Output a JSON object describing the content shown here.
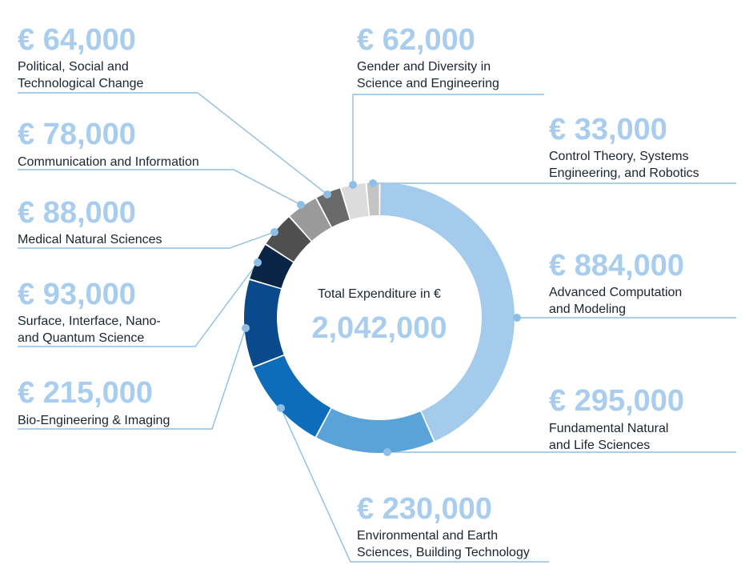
{
  "chart_data": {
    "type": "pie",
    "center_caption": "Total Expenditure in €",
    "total_label": "2,042,000",
    "total": 2042000,
    "slices": [
      {
        "amount_label": "€ 884,000",
        "label_lines": [
          "Advanced Computation",
          "and Modeling"
        ],
        "value": 884000,
        "color": "#a4cbeb"
      },
      {
        "amount_label": "€ 295,000",
        "label_lines": [
          "Fundamental Natural",
          "and Life Sciences"
        ],
        "value": 295000,
        "color": "#5aa3d8"
      },
      {
        "amount_label": "€ 230,000",
        "label_lines": [
          "Environmental and Earth",
          "Sciences, Building Technology"
        ],
        "value": 230000,
        "color": "#0e6dbb"
      },
      {
        "amount_label": "€ 215,000",
        "label_lines": [
          "Bio-Engineering & Imaging"
        ],
        "value": 215000,
        "color": "#0a4a8c"
      },
      {
        "amount_label": "€ 93,000",
        "label_lines": [
          "Surface, Interface, Nano-",
          "and Quantum Science"
        ],
        "value": 93000,
        "color": "#0a2446"
      },
      {
        "amount_label": "€ 88,000",
        "label_lines": [
          "Medical Natural Sciences"
        ],
        "value": 88000,
        "color": "#4f4f4f"
      },
      {
        "amount_label": "€ 78,000",
        "label_lines": [
          "Communication and Information"
        ],
        "value": 78000,
        "color": "#9a9a9a"
      },
      {
        "amount_label": "€ 64,000",
        "label_lines": [
          "Political, Social and",
          "Technological Change"
        ],
        "value": 64000,
        "color": "#6a6a6a"
      },
      {
        "amount_label": "€ 62,000",
        "label_lines": [
          "Gender and Diversity in",
          "Science and Engineering"
        ],
        "value": 62000,
        "color": "#dcdcdc"
      },
      {
        "amount_label": "€ 33,000",
        "label_lines": [
          "Control Theory, Systems",
          "Engineering, and Robotics"
        ],
        "value": 33000,
        "color": "#c4c4c4"
      }
    ],
    "leader_color": "#8dbfe6"
  }
}
